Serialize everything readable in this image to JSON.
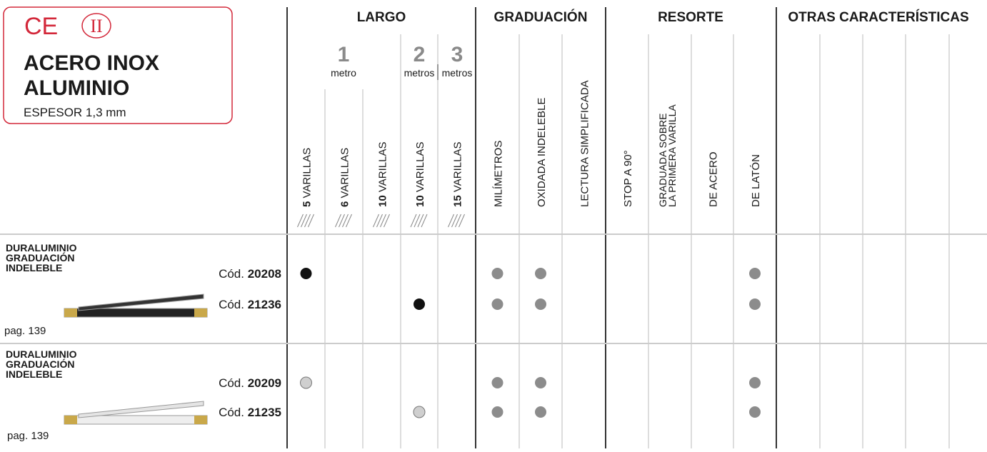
{
  "badge": {
    "ce": "CE",
    "class": "II",
    "lines": [
      "ACERO INOX",
      "ALUMINIO"
    ],
    "thickness": "ESPESOR 1,3 mm"
  },
  "groups": [
    "LARGO",
    "GRADUACIÓN",
    "RESORTE",
    "OTRAS CARACTERÍSTICAS"
  ],
  "lengths": [
    {
      "number": "1",
      "unit": "metro"
    },
    {
      "number": "2",
      "unit": "metros"
    },
    {
      "number": "3",
      "unit": "metros"
    }
  ],
  "columns": [
    {
      "bold": "5",
      "text": "VARILLAS"
    },
    {
      "bold": "6",
      "text": "VARILLAS"
    },
    {
      "bold": "10",
      "text": "VARILLAS"
    },
    {
      "bold": "10",
      "text": "VARILLAS"
    },
    {
      "bold": "15",
      "text": "VARILLAS"
    },
    {
      "text": "MILÍMETROS"
    },
    {
      "text": "OXIDADA INDELEBLE"
    },
    {
      "text": "LECTURA SIMPLIFICADA"
    },
    {
      "text": "STOP A 90°"
    },
    {
      "lines": [
        "GRADUADA SOBRE",
        "LA PRIMERA VARILLA"
      ]
    },
    {
      "text": "DE ACERO"
    },
    {
      "text": "DE LATÓN"
    }
  ],
  "dot_colors": {
    "black": "#111111",
    "grey": "#8c8c8c",
    "light": "#cfcfcf"
  },
  "products": [
    {
      "name": [
        "DURALUMINIO",
        "GRADUACIÓN",
        "INDELEBLE"
      ],
      "page": "pag. 139",
      "rows": [
        {
          "prefix": "Cód.",
          "code": "20208",
          "dots": [
            "black",
            null,
            null,
            null,
            null,
            "grey",
            "grey",
            null,
            null,
            null,
            null,
            "grey"
          ]
        },
        {
          "prefix": "Cód.",
          "code": "21236",
          "dots": [
            null,
            null,
            null,
            "black",
            null,
            "grey",
            "grey",
            null,
            null,
            null,
            null,
            "grey"
          ]
        }
      ]
    },
    {
      "name": [
        "DURALUMINIO",
        "GRADUACIÓN",
        "INDELEBLE"
      ],
      "page": "pag. 139",
      "rows": [
        {
          "prefix": "Cód.",
          "code": "20209",
          "dots": [
            "light",
            null,
            null,
            null,
            null,
            "grey",
            "grey",
            null,
            null,
            null,
            null,
            "grey"
          ]
        },
        {
          "prefix": "Cód.",
          "code": "21235",
          "dots": [
            null,
            null,
            null,
            "light",
            null,
            "grey",
            "grey",
            null,
            null,
            null,
            null,
            "grey"
          ]
        }
      ]
    }
  ]
}
